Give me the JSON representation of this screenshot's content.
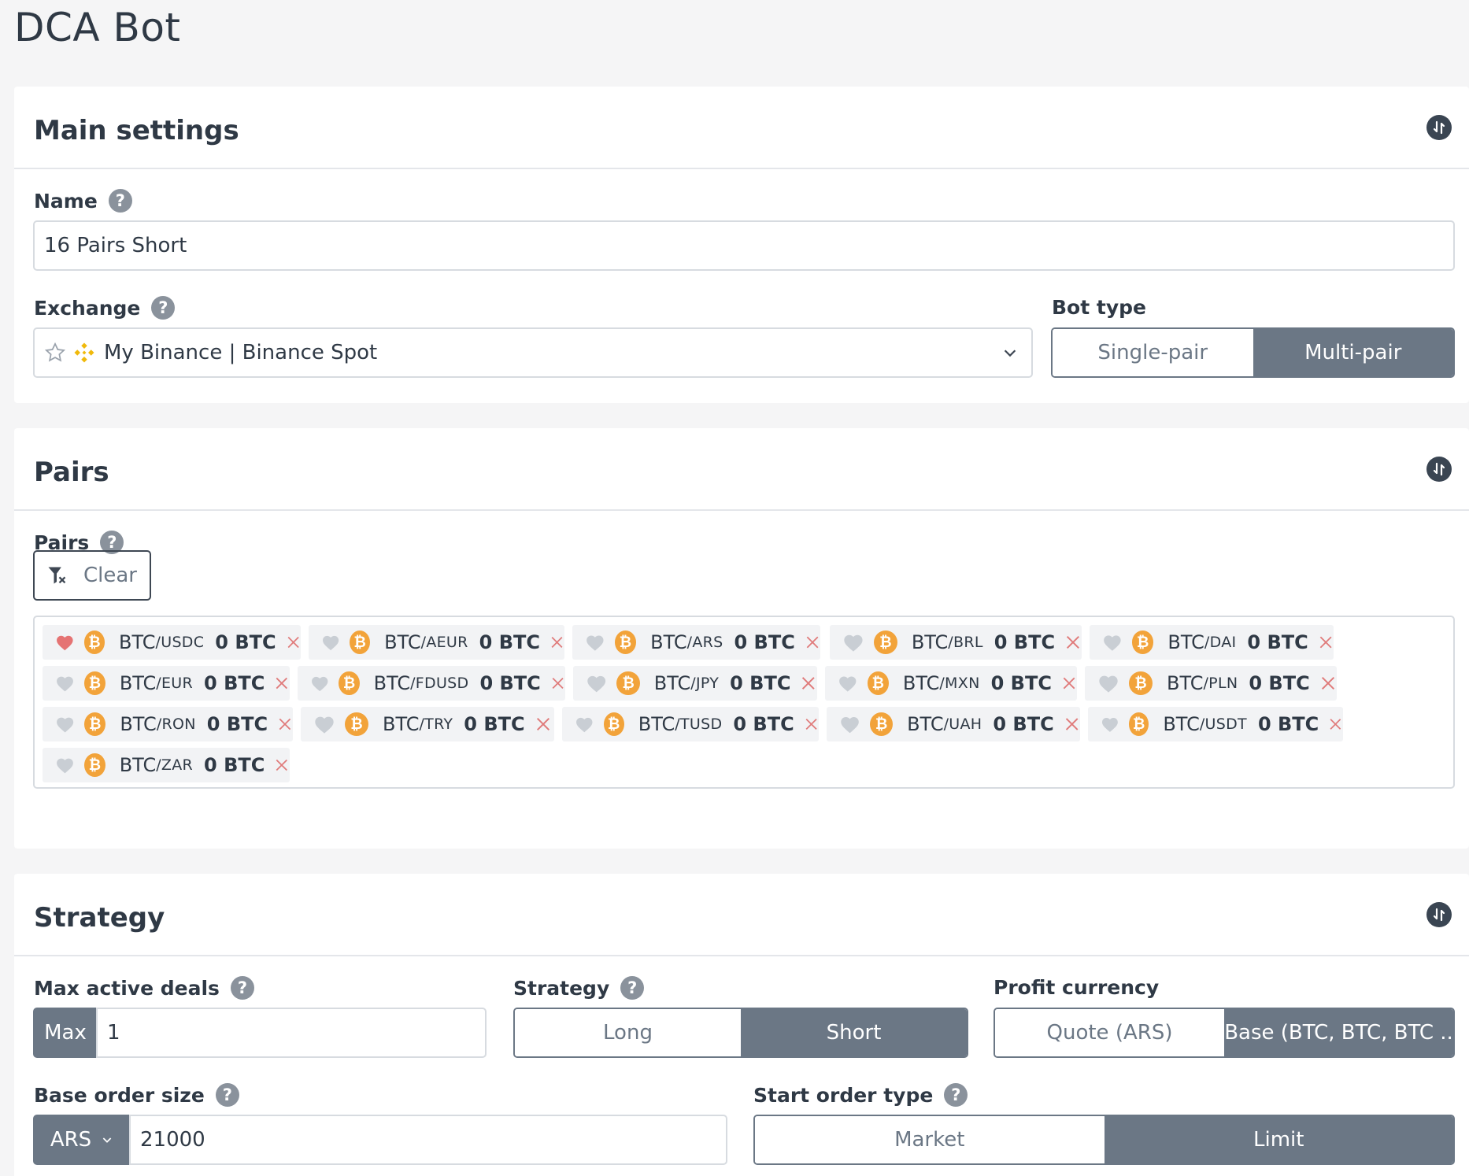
{
  "page": {
    "title": "DCA Bot"
  },
  "main_settings": {
    "title": "Main settings",
    "name_label": "Name",
    "name_value": "16 Pairs Short",
    "exchange_label": "Exchange",
    "exchange_value": "My Binance | Binance Spot",
    "bot_type_label": "Bot type",
    "bot_type_options": [
      "Single-pair",
      "Multi-pair"
    ],
    "bot_type_selected": "Multi-pair"
  },
  "pairs": {
    "title": "Pairs",
    "label": "Pairs",
    "clear_label": "Clear",
    "items": [
      {
        "base": "BTC",
        "quote": "/USDC",
        "amount": "0 BTC",
        "favorite": true
      },
      {
        "base": "BTC",
        "quote": "/AEUR",
        "amount": "0 BTC",
        "favorite": false
      },
      {
        "base": "BTC",
        "quote": "/ARS",
        "amount": "0 BTC",
        "favorite": false
      },
      {
        "base": "BTC",
        "quote": "/BRL",
        "amount": "0 BTC",
        "favorite": false
      },
      {
        "base": "BTC",
        "quote": "/DAI",
        "amount": "0 BTC",
        "favorite": false
      },
      {
        "base": "BTC",
        "quote": "/EUR",
        "amount": "0 BTC",
        "favorite": false
      },
      {
        "base": "BTC",
        "quote": "/FDUSD",
        "amount": "0 BTC",
        "favorite": false
      },
      {
        "base": "BTC",
        "quote": "/JPY",
        "amount": "0 BTC",
        "favorite": false
      },
      {
        "base": "BTC",
        "quote": "/MXN",
        "amount": "0 BTC",
        "favorite": false
      },
      {
        "base": "BTC",
        "quote": "/PLN",
        "amount": "0 BTC",
        "favorite": false
      },
      {
        "base": "BTC",
        "quote": "/RON",
        "amount": "0 BTC",
        "favorite": false
      },
      {
        "base": "BTC",
        "quote": "/TRY",
        "amount": "0 BTC",
        "favorite": false
      },
      {
        "base": "BTC",
        "quote": "/TUSD",
        "amount": "0 BTC",
        "favorite": false
      },
      {
        "base": "BTC",
        "quote": "/UAH",
        "amount": "0 BTC",
        "favorite": false
      },
      {
        "base": "BTC",
        "quote": "/USDT",
        "amount": "0 BTC",
        "favorite": false
      },
      {
        "base": "BTC",
        "quote": "/ZAR",
        "amount": "0 BTC",
        "favorite": false
      }
    ]
  },
  "strategy": {
    "title": "Strategy",
    "max_deals_label": "Max active deals",
    "max_prefix": "Max",
    "max_deals_value": "1",
    "strategy_label": "Strategy",
    "strategy_options": [
      "Long",
      "Short"
    ],
    "strategy_selected": "Short",
    "profit_currency_label": "Profit currency",
    "profit_currency_options": [
      "Quote (ARS)",
      "Base (BTC, BTC, BTC .."
    ],
    "profit_currency_selected": "Base (BTC, BTC, BTC ..",
    "base_order_label": "Base order size",
    "base_order_currency": "ARS",
    "base_order_value": "21000",
    "start_order_label": "Start order type",
    "start_order_options": [
      "Market",
      "Limit"
    ],
    "start_order_selected": "Limit"
  },
  "colors": {
    "accent": "#6b7785",
    "coin": "#f2a33a",
    "heart_active": "#e57373",
    "heart_inactive": "#c9ced4",
    "remove": "#e07b7b"
  }
}
